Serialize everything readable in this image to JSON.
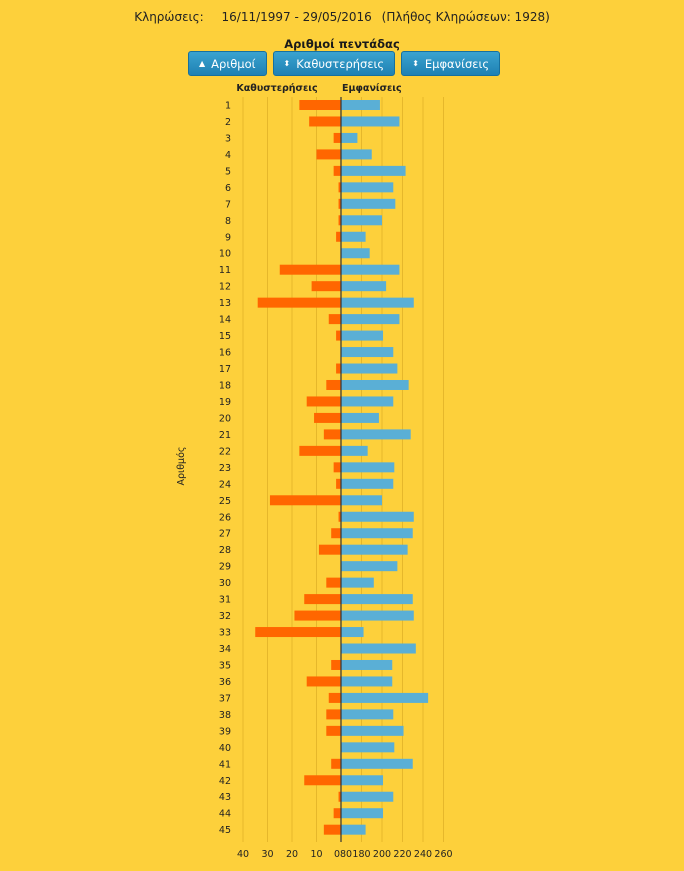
{
  "header": {
    "label": "Κληρώσεις:",
    "range": "16/11/1997 - 29/05/2016",
    "count": "(Πλήθος Κληρώσεων: 1928)"
  },
  "chart_title": "Αριθμοί πεντάδας",
  "buttons": [
    {
      "icon": "sort-up-icon",
      "glyph": "▲",
      "label": "Αριθμοί"
    },
    {
      "icon": "sort-updown-icon",
      "glyph": "⬍",
      "label": "Καθυστερήσεις"
    },
    {
      "icon": "sort-updown-icon",
      "glyph": "⬍",
      "label": "Εμφανίσεις"
    }
  ],
  "colors": {
    "background": "#fdd03b",
    "delays": "#ff6600",
    "appearances": "#5aafd6",
    "axis": "#333333",
    "grid": "#e6b72b"
  },
  "chart_data": {
    "type": "bar",
    "orientation": "horizontal",
    "ylabel": "Αριθμός",
    "categories": [
      "1",
      "2",
      "3",
      "4",
      "5",
      "6",
      "7",
      "8",
      "9",
      "10",
      "11",
      "12",
      "13",
      "14",
      "15",
      "16",
      "17",
      "18",
      "19",
      "20",
      "21",
      "22",
      "23",
      "24",
      "25",
      "26",
      "27",
      "28",
      "29",
      "30",
      "31",
      "32",
      "33",
      "34",
      "35",
      "36",
      "37",
      "38",
      "39",
      "40",
      "41",
      "42",
      "43",
      "44",
      "45"
    ],
    "series": [
      {
        "name": "Καθυστερήσεις",
        "side": "left",
        "values": [
          17,
          13,
          3,
          10,
          3,
          1,
          1,
          1,
          2,
          0,
          25,
          12,
          34,
          5,
          2,
          0,
          2,
          6,
          14,
          11,
          7,
          17,
          3,
          2,
          29,
          1,
          4,
          9,
          0,
          6,
          15,
          19,
          35,
          0,
          4,
          14,
          5,
          6,
          6,
          0,
          4,
          15,
          1,
          3,
          7
        ]
      },
      {
        "name": "Εμφανίσεις",
        "side": "right",
        "values": [
          198,
          217,
          176,
          190,
          223,
          211,
          213,
          200,
          184,
          188,
          217,
          204,
          231,
          217,
          201,
          211,
          215,
          226,
          211,
          197,
          228,
          186,
          212,
          211,
          200,
          231,
          230,
          225,
          215,
          192,
          230,
          231,
          182,
          233,
          210,
          210,
          245,
          211,
          221,
          212,
          230,
          201,
          211,
          201,
          184
        ]
      }
    ],
    "left_axis": {
      "ticks": [
        40,
        30,
        20,
        10,
        0
      ],
      "range": [
        0,
        40
      ]
    },
    "right_axis": {
      "ticks": [
        180,
        200,
        220,
        240,
        260
      ],
      "range": [
        160,
        260
      ],
      "origin_label": "80"
    }
  }
}
